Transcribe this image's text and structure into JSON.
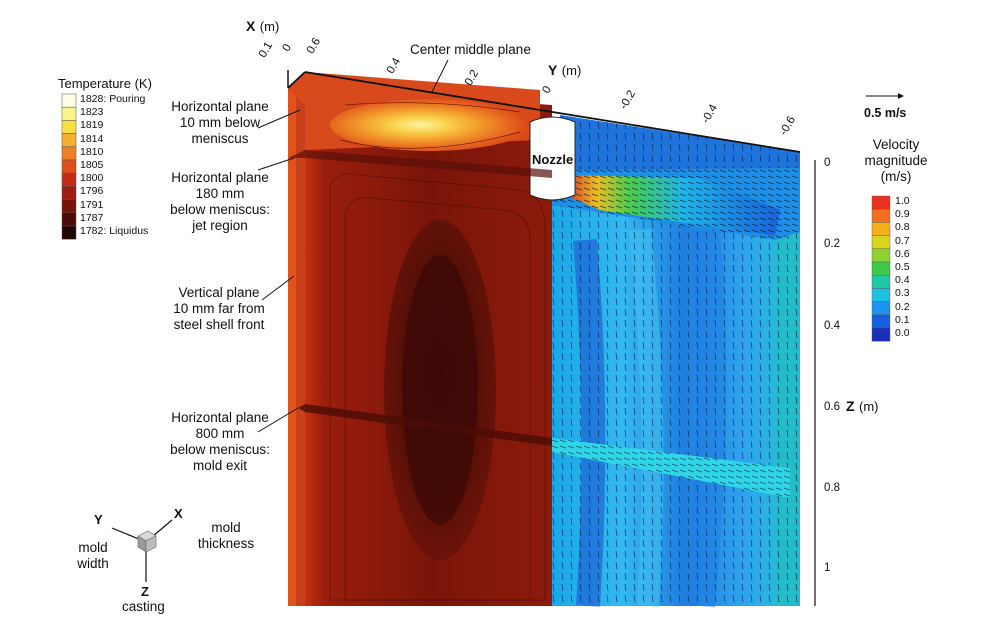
{
  "temperature_legend": {
    "title": "Temperature (K)",
    "entries": [
      {
        "value": "1828",
        "note": ": Pouring",
        "color": "#fdfde8"
      },
      {
        "value": "1823",
        "note": "",
        "color": "#faf48a"
      },
      {
        "value": "1819",
        "note": "",
        "color": "#f8e040"
      },
      {
        "value": "1814",
        "note": "",
        "color": "#f5b032"
      },
      {
        "value": "1810",
        "note": "",
        "color": "#ee7f22"
      },
      {
        "value": "1805",
        "note": "",
        "color": "#e14d1b"
      },
      {
        "value": "1800",
        "note": "",
        "color": "#c42b15"
      },
      {
        "value": "1796",
        "note": "",
        "color": "#9f1d0e"
      },
      {
        "value": "1791",
        "note": "",
        "color": "#77140a"
      },
      {
        "value": "1787",
        "note": "",
        "color": "#4d0c06"
      },
      {
        "value": "1782",
        "note": ": Liquidus",
        "color": "#1e0604"
      }
    ]
  },
  "velocity_legend": {
    "reference_label": "0.5 m/s",
    "title_lines": [
      "Velocity",
      "magnitude",
      "(m/s)"
    ],
    "entries": [
      {
        "value": "1.0",
        "color": "#e6321e"
      },
      {
        "value": "0.9",
        "color": "#f2701e"
      },
      {
        "value": "0.8",
        "color": "#f7b01c"
      },
      {
        "value": "0.7",
        "color": "#d8d51f"
      },
      {
        "value": "0.6",
        "color": "#8fd132"
      },
      {
        "value": "0.5",
        "color": "#3ec84a"
      },
      {
        "value": "0.4",
        "color": "#22c8a5"
      },
      {
        "value": "0.3",
        "color": "#1fc0e0"
      },
      {
        "value": "0.2",
        "color": "#1c93ec"
      },
      {
        "value": "0.1",
        "color": "#1660e0"
      },
      {
        "value": "0.0",
        "color": "#1a2fb8"
      }
    ]
  },
  "axes": {
    "x": {
      "title": "X",
      "unit": "(m)",
      "ticks": [
        "0.1",
        "0",
        "0.6"
      ]
    },
    "y": {
      "title": "Y",
      "unit": "(m)",
      "ticks": [
        "0.4",
        "0.2",
        "0",
        "-0.2",
        "-0.4",
        "-0.6"
      ]
    },
    "z": {
      "title": "Z",
      "unit": "(m)",
      "ticks": [
        "0",
        "0.2",
        "0.4",
        "0.6",
        "0.8",
        "1"
      ]
    }
  },
  "annotations": {
    "center_plane": "Center middle plane",
    "nozzle": "Nozzle",
    "plane_10mm": [
      "Horizontal plane",
      "10 mm below",
      "meniscus"
    ],
    "plane_180mm": [
      "Horizontal plane",
      "180 mm",
      "below meniscus:",
      "jet region"
    ],
    "vertical_plane": [
      "Vertical plane",
      "10 mm far from",
      "steel shell front"
    ],
    "plane_800mm": [
      "Horizontal plane",
      "800 mm",
      "below meniscus:",
      "mold exit"
    ]
  },
  "orientation": {
    "y_axis": "Y",
    "y_desc": [
      "mold",
      "width"
    ],
    "x_axis": "X",
    "x_desc": [
      "mold",
      "thickness"
    ],
    "z_axis": "Z",
    "z_desc": "casting"
  }
}
